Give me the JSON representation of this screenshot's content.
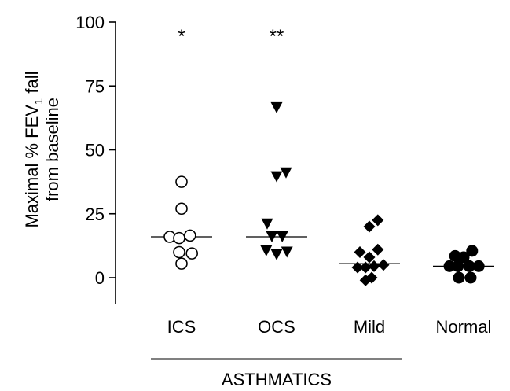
{
  "chart_data": {
    "type": "scatter",
    "ylabel_line1": "Maximal % FEV",
    "ylabel_sub": "1",
    "ylabel_line1_end": " fall",
    "ylabel_line2": "from baseline",
    "y_ticks": [
      0,
      25,
      50,
      75,
      100
    ],
    "ylim": [
      -10,
      100
    ],
    "categories": [
      "ICS",
      "OCS",
      "Mild",
      "Normal"
    ],
    "group_label": "ASTHMATICS",
    "series": [
      {
        "category": "ICS",
        "marker": "open-circle",
        "median": 16,
        "significance": "*",
        "points": [
          {
            "x": 0,
            "y": 37.5
          },
          {
            "x": 0,
            "y": 27
          },
          {
            "x": -0.25,
            "y": 16
          },
          {
            "x": -0.05,
            "y": 15.5
          },
          {
            "x": 0.18,
            "y": 16.5
          },
          {
            "x": -0.05,
            "y": 10
          },
          {
            "x": 0.22,
            "y": 9.5
          },
          {
            "x": 0,
            "y": 5.5
          }
        ]
      },
      {
        "category": "OCS",
        "marker": "filled-triangle-down",
        "median": 16,
        "significance": "**",
        "points": [
          {
            "x": 0,
            "y": 66.5
          },
          {
            "x": 0.2,
            "y": 41
          },
          {
            "x": 0,
            "y": 39.5
          },
          {
            "x": -0.2,
            "y": 21
          },
          {
            "x": -0.1,
            "y": 16
          },
          {
            "x": 0.12,
            "y": 16
          },
          {
            "x": -0.22,
            "y": 10.5
          },
          {
            "x": 0,
            "y": 9
          },
          {
            "x": 0.22,
            "y": 10
          }
        ]
      },
      {
        "category": "Mild",
        "marker": "filled-diamond",
        "median": 5.5,
        "significance": "",
        "points": [
          {
            "x": 0.18,
            "y": 22.5
          },
          {
            "x": 0,
            "y": 20
          },
          {
            "x": 0.18,
            "y": 11
          },
          {
            "x": -0.2,
            "y": 10
          },
          {
            "x": 0,
            "y": 8
          },
          {
            "x": -0.25,
            "y": 4
          },
          {
            "x": -0.08,
            "y": 4
          },
          {
            "x": 0.1,
            "y": 4.5
          },
          {
            "x": 0.3,
            "y": 5
          },
          {
            "x": 0.05,
            "y": 0
          },
          {
            "x": -0.08,
            "y": -1
          }
        ]
      },
      {
        "category": "Normal",
        "marker": "filled-circle",
        "median": 4.5,
        "significance": "",
        "points": [
          {
            "x": 0.18,
            "y": 10.5
          },
          {
            "x": -0.18,
            "y": 8.5
          },
          {
            "x": 0,
            "y": 8
          },
          {
            "x": -0.3,
            "y": 4.5
          },
          {
            "x": -0.12,
            "y": 4.5
          },
          {
            "x": 0.12,
            "y": 4.5
          },
          {
            "x": 0.32,
            "y": 4.5
          },
          {
            "x": -0.1,
            "y": 0
          },
          {
            "x": 0.15,
            "y": 0
          }
        ]
      }
    ]
  }
}
